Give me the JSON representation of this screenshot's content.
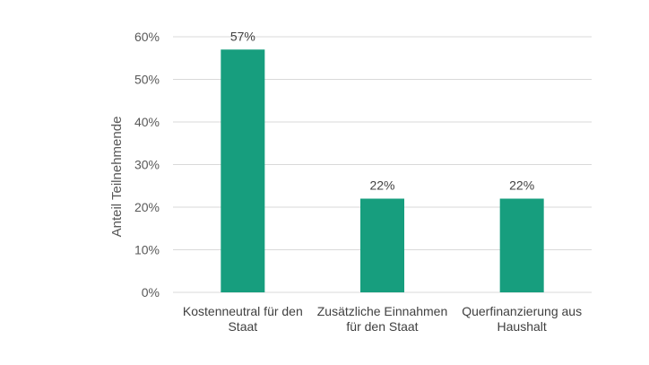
{
  "chart_data": {
    "type": "bar",
    "categories": [
      [
        "Kostenneutral für den",
        "Staat"
      ],
      [
        "Zusätzliche Einnahmen",
        "für den Staat"
      ],
      [
        "Querfinanzierung aus",
        "Haushalt"
      ]
    ],
    "values": [
      57,
      22,
      22
    ],
    "data_labels": [
      "57%",
      "22%",
      "22%"
    ],
    "ylabel": "Anteil Teilnehmende",
    "ylim": [
      0,
      60
    ],
    "yticks": [
      0,
      10,
      20,
      30,
      40,
      50,
      60
    ],
    "ytick_labels": [
      "0%",
      "10%",
      "20%",
      "30%",
      "40%",
      "50%",
      "60%"
    ],
    "grid": true,
    "bar_color": "#179E7E",
    "grid_color": "#D9D9D9"
  }
}
